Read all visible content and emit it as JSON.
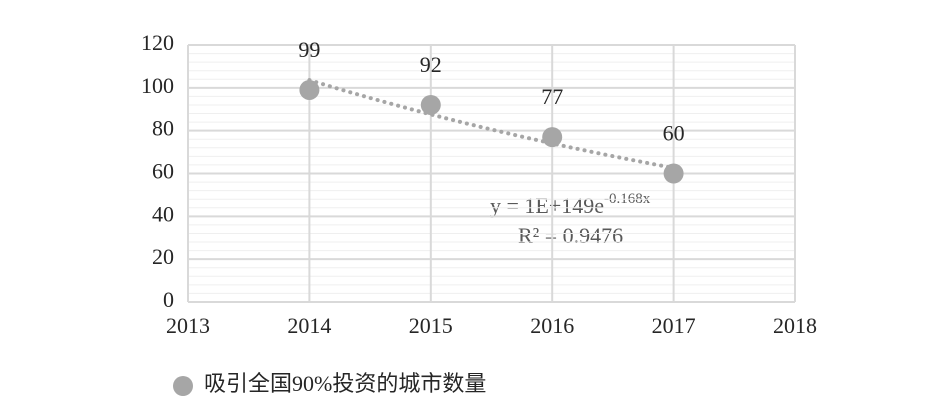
{
  "chart_data": {
    "type": "scatter",
    "x": [
      2014,
      2015,
      2016,
      2017
    ],
    "series": [
      {
        "name": "吸引全国90%投资的城市数量",
        "color": "#a6a6a6",
        "values": [
          99,
          92,
          77,
          60
        ]
      }
    ],
    "xlim": [
      2013,
      2018
    ],
    "xticks": [
      2013,
      2014,
      2015,
      2016,
      2017,
      2018
    ],
    "ylim": [
      0,
      120
    ],
    "yticks": [
      0,
      20,
      40,
      60,
      80,
      100,
      120
    ],
    "grid": true,
    "legend": "bottom-left",
    "trendline": {
      "kind": "exponential",
      "color": "#a6a6a6",
      "equation": "y = 1E+149e",
      "equation_exponent": "-0.168x",
      "r_squared": "R² = 0.9476"
    }
  }
}
